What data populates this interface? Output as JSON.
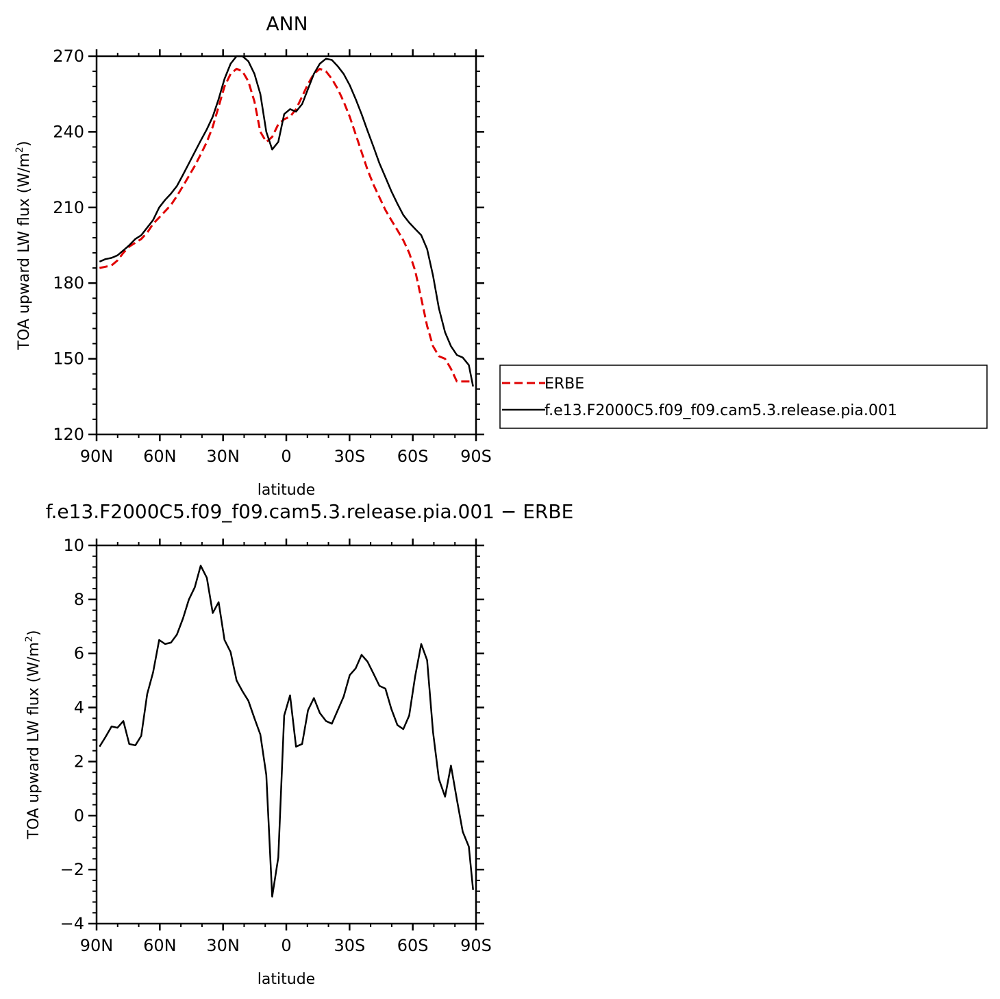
{
  "chart_data": [
    {
      "type": "line",
      "title": "ANN",
      "xlabel": "latitude",
      "ylabel": "TOA upward LW flux (W/m",
      "ylabel_sup": "2",
      "ylabel_end": ")",
      "xlim": [
        -90,
        90
      ],
      "ylim": [
        120,
        270
      ],
      "xticks": [
        -90,
        -60,
        -30,
        0,
        30,
        60,
        90
      ],
      "xtick_labels": [
        "90N",
        "60N",
        "30N",
        "0",
        "30S",
        "60S",
        "90S"
      ],
      "yticks": [
        120,
        150,
        180,
        210,
        240,
        270
      ],
      "ytick_labels": [
        "120",
        "150",
        "180",
        "210",
        "240",
        "270"
      ],
      "grid": false,
      "legend_position": "right",
      "series": [
        {
          "name": "ERBE",
          "color": "#e00000",
          "dash": "dashed",
          "x": [
            -88.6,
            -85.8,
            -82.9,
            -80.1,
            -77.3,
            -74.5,
            -71.6,
            -68.8,
            -66.0,
            -63.2,
            -60.3,
            -57.5,
            -54.7,
            -51.9,
            -49.0,
            -46.2,
            -43.4,
            -40.6,
            -37.7,
            -34.9,
            -32.1,
            -29.3,
            -26.4,
            -23.6,
            -20.8,
            -18.0,
            -15.1,
            -12.3,
            -9.5,
            -6.7,
            -3.8,
            -1.0,
            1.8,
            4.6,
            7.5,
            10.3,
            13.1,
            15.9,
            18.8,
            21.6,
            24.4,
            27.2,
            30.1,
            32.9,
            35.7,
            38.5,
            41.4,
            44.2,
            47.0,
            49.8,
            52.7,
            55.5,
            58.3,
            61.1,
            64.0,
            66.8,
            69.6,
            72.4,
            75.3,
            78.1,
            80.9,
            83.7,
            86.6,
            88.6
          ],
          "y": [
            186,
            186.5,
            187,
            189,
            192,
            194.5,
            196,
            197.5,
            200,
            203.5,
            206,
            208.5,
            211,
            214.5,
            218.5,
            222.5,
            226.5,
            231,
            236,
            242,
            250,
            258,
            263,
            265,
            264,
            260,
            252,
            240,
            236,
            238,
            243,
            245,
            246,
            249,
            254,
            259,
            263,
            265,
            264,
            261,
            257,
            252,
            246,
            239,
            232,
            225,
            219,
            214,
            209,
            205,
            201,
            197,
            192,
            185,
            174,
            163,
            155,
            151,
            150,
            146,
            141,
            141,
            141,
            141
          ]
        },
        {
          "name": "f.e13.F2000C5.f09_f09.cam5.3.release.pia.001",
          "color": "#000000",
          "dash": "solid",
          "x": [
            -88.6,
            -85.8,
            -82.9,
            -80.1,
            -77.3,
            -74.5,
            -71.6,
            -68.8,
            -66.0,
            -63.2,
            -60.3,
            -57.5,
            -54.7,
            -51.9,
            -49.0,
            -46.2,
            -43.4,
            -40.6,
            -37.7,
            -34.9,
            -32.1,
            -29.3,
            -26.4,
            -23.6,
            -20.8,
            -18.0,
            -15.1,
            -12.3,
            -9.5,
            -6.7,
            -3.8,
            -1.0,
            1.8,
            4.6,
            7.5,
            10.3,
            13.1,
            15.9,
            18.8,
            21.6,
            24.4,
            27.2,
            30.1,
            32.9,
            35.7,
            38.5,
            41.4,
            44.2,
            47.0,
            49.8,
            52.7,
            55.5,
            58.3,
            61.1,
            64.0,
            66.8,
            69.6,
            72.4,
            75.3,
            78.1,
            80.9,
            83.7,
            86.6,
            88.6
          ],
          "y": [
            188.5,
            189.5,
            190,
            191,
            193,
            195,
            197.5,
            199,
            202,
            205,
            210,
            213,
            215.5,
            218.5,
            223,
            227.5,
            232,
            236.5,
            241,
            246,
            253,
            261,
            267,
            270,
            270,
            268,
            263,
            255,
            240,
            233,
            236,
            247,
            249,
            248,
            251,
            257,
            263,
            267,
            269,
            268.5,
            266,
            263,
            258.5,
            253,
            247,
            240.5,
            234,
            227.5,
            222,
            216.5,
            211.5,
            207,
            204,
            201.5,
            199,
            193.5,
            183,
            170,
            160.5,
            155,
            151.5,
            150.5,
            147.5,
            139
          ]
        }
      ]
    },
    {
      "type": "line",
      "title": "f.e13.F2000C5.f09_f09.cam5.3.release.pia.001 − ERBE",
      "xlabel": "latitude",
      "ylabel": "TOA upward LW flux (W/m",
      "ylabel_sup": "2",
      "ylabel_end": ")",
      "xlim": [
        -90,
        90
      ],
      "ylim": [
        -4,
        10
      ],
      "xticks": [
        -90,
        -60,
        -30,
        0,
        30,
        60,
        90
      ],
      "xtick_labels": [
        "90N",
        "60N",
        "30N",
        "0",
        "30S",
        "60S",
        "90S"
      ],
      "yticks": [
        -4,
        -2,
        0,
        2,
        4,
        6,
        8,
        10
      ],
      "ytick_labels": [
        "−4",
        "−2",
        "0",
        "2",
        "4",
        "6",
        "8",
        "10"
      ],
      "grid": false,
      "series": [
        {
          "name": "",
          "color": "#000000",
          "dash": "solid",
          "x": [
            -88.6,
            -85.8,
            -82.9,
            -80.1,
            -77.3,
            -74.5,
            -71.6,
            -68.8,
            -66.0,
            -63.2,
            -60.3,
            -57.5,
            -54.7,
            -51.9,
            -49.0,
            -46.2,
            -43.4,
            -40.6,
            -37.7,
            -34.9,
            -32.1,
            -29.3,
            -26.4,
            -23.6,
            -20.8,
            -18.0,
            -15.1,
            -12.3,
            -9.5,
            -6.7,
            -3.8,
            -1.0,
            1.8,
            4.6,
            7.5,
            10.3,
            13.1,
            15.9,
            18.8,
            21.6,
            24.4,
            27.2,
            30.1,
            32.9,
            35.7,
            38.5,
            41.4,
            44.2,
            47.0,
            49.8,
            52.7,
            55.5,
            58.3,
            61.1,
            64.0,
            66.8,
            69.6,
            72.4,
            75.3,
            78.1,
            80.9,
            83.7,
            86.6,
            88.6
          ],
          "y": [
            2.55,
            2.9,
            3.3,
            3.25,
            3.5,
            2.65,
            2.6,
            2.95,
            4.5,
            5.3,
            6.5,
            6.35,
            6.4,
            6.7,
            7.3,
            8.0,
            8.45,
            9.25,
            8.8,
            7.5,
            7.9,
            6.5,
            6.05,
            5.0,
            4.6,
            4.25,
            3.6,
            3.0,
            1.5,
            -3.0,
            -1.55,
            3.7,
            4.45,
            2.55,
            2.65,
            3.9,
            4.35,
            3.8,
            3.5,
            3.4,
            3.9,
            4.4,
            5.2,
            5.45,
            5.95,
            5.7,
            5.25,
            4.8,
            4.7,
            3.95,
            3.35,
            3.2,
            3.7,
            5.15,
            6.35,
            5.75,
            3.1,
            1.35,
            0.7,
            1.85,
            0.6,
            -0.6,
            -1.15,
            -2.75
          ]
        }
      ]
    }
  ]
}
